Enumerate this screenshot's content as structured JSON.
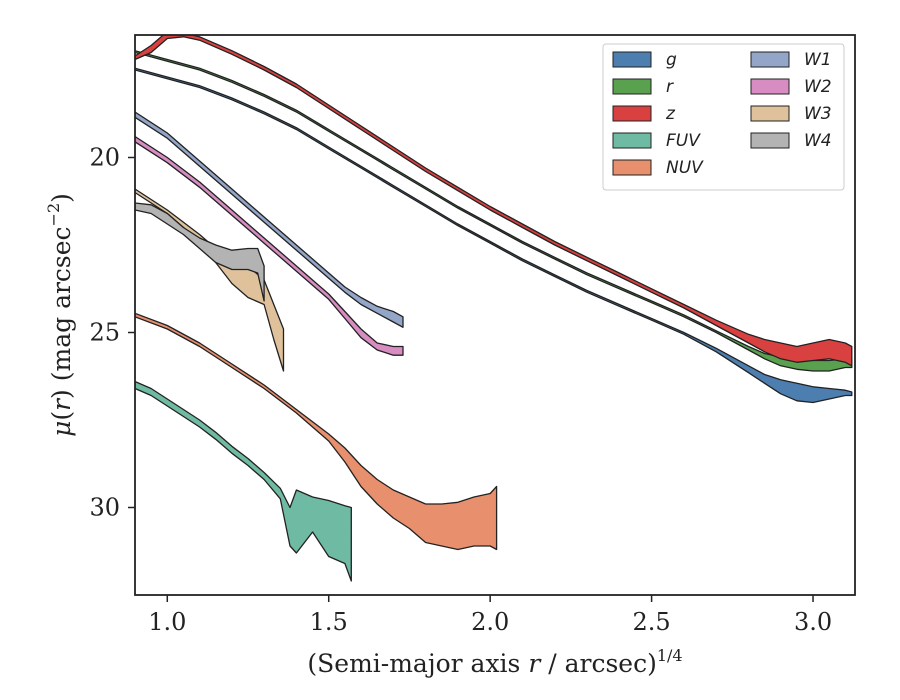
{
  "chart_data": {
    "type": "area",
    "title": "",
    "xlabel": "(Semi-major axis r / arcsec)",
    "xlabel_parts": {
      "prefix": "(Semi-major axis ",
      "var": "r",
      "suffix": " / arcsec)",
      "sup": "1/4"
    },
    "ylabel": "μ(r) (mag arcsec⁻²)",
    "ylabel_parts": {
      "mu": "μ",
      "paren_open": "(",
      "var": "r",
      "paren_close": ")",
      "unit": " (mag arcsec",
      "sup": "−2",
      "unit_close": ")"
    },
    "xlim": [
      0.9,
      3.13
    ],
    "ylim": [
      32.5,
      16.5
    ],
    "y_inverted": true,
    "x_ticks": [
      1.0,
      1.5,
      2.0,
      2.5,
      3.0
    ],
    "x_tick_labels": [
      "1.0",
      "1.5",
      "2.0",
      "2.5",
      "3.0"
    ],
    "y_ticks": [
      20,
      25,
      30
    ],
    "y_tick_labels": [
      "20",
      "25",
      "30"
    ],
    "grid": false,
    "legend_placement": "top-right",
    "legend_columns": 2,
    "series": [
      {
        "name": "g",
        "color": "#4c7fb0",
        "x": [
          0.9,
          1.0,
          1.1,
          1.2,
          1.3,
          1.4,
          1.5,
          1.6,
          1.7,
          1.8,
          1.9,
          2.0,
          2.1,
          2.2,
          2.3,
          2.4,
          2.5,
          2.6,
          2.7,
          2.8,
          2.85,
          2.9,
          2.95,
          3.0,
          3.05,
          3.1,
          3.12
        ],
        "y1": [
          17.45,
          17.7,
          17.95,
          18.3,
          18.7,
          19.15,
          19.7,
          20.25,
          20.8,
          21.35,
          21.9,
          22.4,
          22.9,
          23.35,
          23.8,
          24.2,
          24.6,
          25.0,
          25.45,
          25.95,
          26.2,
          26.35,
          26.45,
          26.55,
          26.6,
          26.65,
          26.7
        ],
        "y2": [
          17.5,
          17.75,
          18.0,
          18.35,
          18.75,
          19.2,
          19.75,
          20.3,
          20.85,
          21.4,
          21.95,
          22.45,
          22.95,
          23.4,
          23.85,
          24.25,
          24.65,
          25.05,
          25.55,
          26.15,
          26.45,
          26.75,
          26.95,
          27.0,
          26.9,
          26.8,
          26.8
        ]
      },
      {
        "name": "r",
        "color": "#59a14f",
        "x": [
          0.9,
          1.0,
          1.1,
          1.2,
          1.3,
          1.4,
          1.5,
          1.6,
          1.7,
          1.8,
          1.9,
          2.0,
          2.1,
          2.2,
          2.3,
          2.4,
          2.5,
          2.6,
          2.7,
          2.8,
          2.85,
          2.9,
          2.95,
          3.0,
          3.05,
          3.1,
          3.12
        ],
        "y1": [
          16.95,
          17.2,
          17.45,
          17.8,
          18.2,
          18.65,
          19.2,
          19.75,
          20.3,
          20.85,
          21.4,
          21.9,
          22.4,
          22.85,
          23.3,
          23.7,
          24.1,
          24.5,
          24.95,
          25.4,
          25.6,
          25.7,
          25.75,
          25.8,
          25.8,
          25.75,
          25.75
        ],
        "y2": [
          17.0,
          17.25,
          17.5,
          17.85,
          18.25,
          18.7,
          19.25,
          19.8,
          20.35,
          20.9,
          21.45,
          21.95,
          22.45,
          22.9,
          23.35,
          23.75,
          24.15,
          24.55,
          25.0,
          25.5,
          25.75,
          25.95,
          26.05,
          26.1,
          26.1,
          26.0,
          26.0
        ]
      },
      {
        "name": "z",
        "color": "#d94040",
        "x": [
          0.9,
          0.95,
          1.0,
          1.05,
          1.1,
          1.2,
          1.3,
          1.4,
          1.5,
          1.6,
          1.7,
          1.8,
          1.9,
          2.0,
          2.1,
          2.2,
          2.3,
          2.4,
          2.5,
          2.6,
          2.7,
          2.8,
          2.85,
          2.9,
          2.95,
          3.0,
          3.05,
          3.1,
          3.12
        ],
        "y1": [
          17.1,
          16.8,
          16.4,
          16.45,
          16.55,
          16.95,
          17.4,
          17.9,
          18.5,
          19.1,
          19.7,
          20.3,
          20.85,
          21.4,
          21.9,
          22.4,
          22.85,
          23.3,
          23.75,
          24.2,
          24.65,
          25.05,
          25.2,
          25.3,
          25.4,
          25.3,
          25.2,
          25.3,
          25.4
        ],
        "y2": [
          17.2,
          17.0,
          16.6,
          16.55,
          16.65,
          17.05,
          17.5,
          18.0,
          18.6,
          19.2,
          19.8,
          20.4,
          20.95,
          21.5,
          22.0,
          22.5,
          22.95,
          23.4,
          23.85,
          24.3,
          24.8,
          25.3,
          25.55,
          25.75,
          25.85,
          25.8,
          25.75,
          25.85,
          25.95
        ]
      },
      {
        "name": "FUV",
        "color": "#6fbaa2",
        "x": [
          0.9,
          0.95,
          1.0,
          1.1,
          1.15,
          1.2,
          1.25,
          1.3,
          1.35,
          1.38,
          1.4,
          1.45,
          1.5,
          1.55,
          1.57
        ],
        "y1": [
          26.4,
          26.6,
          26.9,
          27.5,
          27.85,
          28.25,
          28.6,
          29.0,
          29.45,
          30.0,
          29.5,
          29.7,
          29.8,
          29.95,
          30.0
        ],
        "y2": [
          26.6,
          26.8,
          27.1,
          27.7,
          28.05,
          28.45,
          28.8,
          29.2,
          29.75,
          31.1,
          31.3,
          30.7,
          31.4,
          31.6,
          32.1
        ]
      },
      {
        "name": "NUV",
        "color": "#e8906e",
        "x": [
          0.9,
          1.0,
          1.1,
          1.2,
          1.3,
          1.4,
          1.5,
          1.55,
          1.6,
          1.65,
          1.7,
          1.75,
          1.8,
          1.85,
          1.9,
          1.95,
          2.0,
          2.02
        ],
        "y1": [
          24.45,
          24.8,
          25.3,
          25.9,
          26.5,
          27.2,
          27.9,
          28.3,
          28.8,
          29.2,
          29.5,
          29.7,
          29.9,
          29.9,
          29.85,
          29.7,
          29.6,
          29.4
        ],
        "y2": [
          24.55,
          24.9,
          25.4,
          26.0,
          26.6,
          27.3,
          28.1,
          28.7,
          29.4,
          29.9,
          30.3,
          30.6,
          31.0,
          31.1,
          31.2,
          31.1,
          31.1,
          31.2
        ]
      },
      {
        "name": "W1",
        "color": "#93a6c8",
        "x": [
          0.9,
          1.0,
          1.1,
          1.2,
          1.3,
          1.4,
          1.5,
          1.55,
          1.6,
          1.65,
          1.7,
          1.73
        ],
        "y1": [
          18.7,
          19.3,
          20.1,
          20.9,
          21.7,
          22.5,
          23.3,
          23.7,
          24.0,
          24.25,
          24.4,
          24.55
        ],
        "y2": [
          18.85,
          19.45,
          20.25,
          21.05,
          21.85,
          22.65,
          23.45,
          23.85,
          24.2,
          24.45,
          24.7,
          24.85
        ]
      },
      {
        "name": "W2",
        "color": "#d88dc2",
        "x": [
          0.9,
          1.0,
          1.1,
          1.2,
          1.3,
          1.4,
          1.5,
          1.55,
          1.6,
          1.65,
          1.7,
          1.73
        ],
        "y1": [
          19.4,
          20.0,
          20.7,
          21.5,
          22.3,
          23.1,
          23.9,
          24.4,
          24.9,
          25.3,
          25.4,
          25.4
        ],
        "y2": [
          19.55,
          20.15,
          20.85,
          21.65,
          22.45,
          23.25,
          24.05,
          24.6,
          25.15,
          25.5,
          25.65,
          25.65
        ]
      },
      {
        "name": "W3",
        "color": "#dfc29b",
        "x": [
          0.9,
          1.0,
          1.1,
          1.15,
          1.2,
          1.25,
          1.3,
          1.33,
          1.36
        ],
        "y1": [
          20.9,
          21.5,
          22.2,
          22.6,
          22.9,
          23.1,
          23.5,
          24.2,
          24.9
        ],
        "y2": [
          21.0,
          21.6,
          22.4,
          23.0,
          23.6,
          24.0,
          24.2,
          25.2,
          26.1
        ]
      },
      {
        "name": "W4",
        "color": "#b3b3b3",
        "x": [
          0.9,
          0.95,
          1.0,
          1.05,
          1.1,
          1.15,
          1.2,
          1.25,
          1.28,
          1.3
        ],
        "y1": [
          21.3,
          21.35,
          21.6,
          22.0,
          22.3,
          22.5,
          22.65,
          22.6,
          22.6,
          23.1
        ],
        "y2": [
          21.5,
          21.6,
          21.9,
          22.2,
          22.6,
          23.0,
          23.2,
          23.2,
          23.3,
          24.1
        ]
      }
    ]
  }
}
